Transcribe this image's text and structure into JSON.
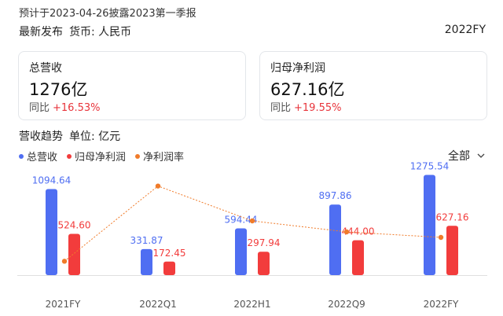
{
  "header": {
    "notice": "预计于2023-04-26披露2023第一季报",
    "latest": "最新发布",
    "currency": "货币: 人民币",
    "period": "2022FY"
  },
  "cards": [
    {
      "label": "总营收",
      "value": "1276亿",
      "yoy_label": "同比",
      "yoy_value": "+16.53%"
    },
    {
      "label": "归母净利润",
      "value": "627.16亿",
      "yoy_label": "同比",
      "yoy_value": "+19.55%"
    }
  ],
  "trend": {
    "title": "营收趋势",
    "unit": "单位: 亿元",
    "filter": "全部"
  },
  "colors": {
    "revenue": "#4f6ef2",
    "profit": "#f23c3c",
    "margin": "#f07b2a"
  },
  "chart_data": {
    "type": "bar",
    "categories": [
      "2021FY",
      "2022Q1",
      "2022H1",
      "2022Q9",
      "2022FY"
    ],
    "series": [
      {
        "name": "总营收",
        "values": [
          1094.64,
          331.87,
          594.44,
          897.86,
          1275.54
        ],
        "labels": [
          "1094.64",
          "331.87",
          "594.44",
          "897.86",
          "1275.54"
        ]
      },
      {
        "name": "归母净利润",
        "values": [
          524.6,
          172.45,
          297.94,
          444.0,
          627.16
        ],
        "labels": [
          "524.60",
          "172.45",
          "297.94",
          "444.00",
          "627.16"
        ]
      },
      {
        "name": "净利润率",
        "type": "line",
        "values": [
          47.9,
          52.0,
          50.1,
          49.5,
          49.2
        ]
      }
    ],
    "legend": "top-left",
    "ylim": [
      0,
      1320
    ]
  }
}
